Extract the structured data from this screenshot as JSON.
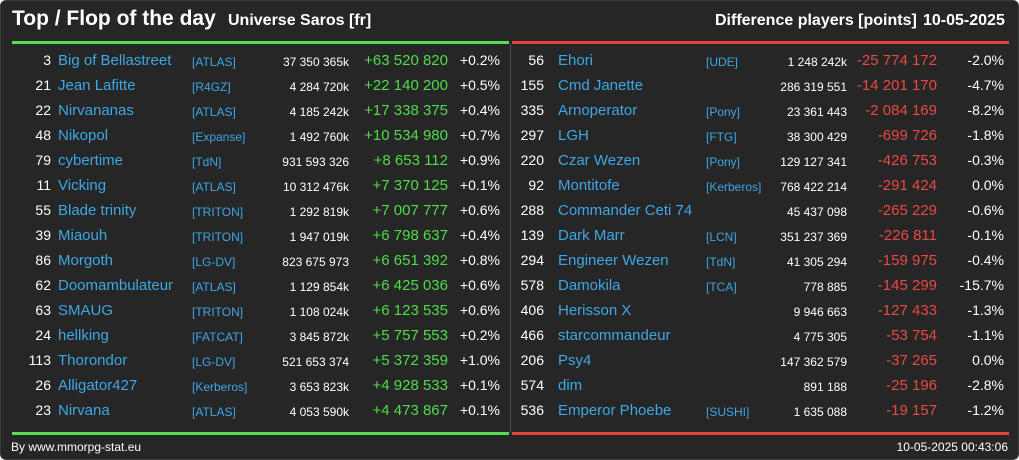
{
  "header": {
    "title": "Top / Flop of the day",
    "universe": "Universe Saros [fr]",
    "metric": "Difference players [points]",
    "date": "10-05-2025"
  },
  "colors": {
    "background": "#262626",
    "top_accent": "#5bdc4e",
    "flop_accent": "#e0463f",
    "link": "#3ea7e6"
  },
  "top": [
    {
      "rank": "3",
      "name": "Big of Bellastreet",
      "alliance": "[ATLAS]",
      "points": "37 350 365k",
      "diff": "+63 520 820",
      "pct": "+0.2%"
    },
    {
      "rank": "21",
      "name": "Jean Lafitte",
      "alliance": "[R4GZ]",
      "points": "4 284 720k",
      "diff": "+22 140 200",
      "pct": "+0.5%"
    },
    {
      "rank": "22",
      "name": "Nirvananas",
      "alliance": "[ATLAS]",
      "points": "4 185 242k",
      "diff": "+17 338 375",
      "pct": "+0.4%"
    },
    {
      "rank": "48",
      "name": "Nikopol",
      "alliance": "[Expanse]",
      "points": "1 492 760k",
      "diff": "+10 534 980",
      "pct": "+0.7%"
    },
    {
      "rank": "79",
      "name": "cybertime",
      "alliance": "[TdN]",
      "points": "931 593 326",
      "diff": "+8 653 112",
      "pct": "+0.9%"
    },
    {
      "rank": "11",
      "name": "Vicking",
      "alliance": "[ATLAS]",
      "points": "10 312 476k",
      "diff": "+7 370 125",
      "pct": "+0.1%"
    },
    {
      "rank": "55",
      "name": "Blade trinity",
      "alliance": "[TRITON]",
      "points": "1 292 819k",
      "diff": "+7 007 777",
      "pct": "+0.6%"
    },
    {
      "rank": "39",
      "name": "Miaouh",
      "alliance": "[TRITON]",
      "points": "1 947 019k",
      "diff": "+6 798 637",
      "pct": "+0.4%"
    },
    {
      "rank": "86",
      "name": "Morgoth",
      "alliance": "[LG-DV]",
      "points": "823 675 973",
      "diff": "+6 651 392",
      "pct": "+0.8%"
    },
    {
      "rank": "62",
      "name": "Doomambulateur",
      "alliance": "[ATLAS]",
      "points": "1 129 854k",
      "diff": "+6 425 036",
      "pct": "+0.6%"
    },
    {
      "rank": "63",
      "name": "SMAUG",
      "alliance": "[TRITON]",
      "points": "1 108 024k",
      "diff": "+6 123 535",
      "pct": "+0.6%"
    },
    {
      "rank": "24",
      "name": "hellking",
      "alliance": "[FATCAT]",
      "points": "3 845 872k",
      "diff": "+5 757 553",
      "pct": "+0.2%"
    },
    {
      "rank": "113",
      "name": "Thorondor",
      "alliance": "[LG-DV]",
      "points": "521 653 374",
      "diff": "+5 372 359",
      "pct": "+1.0%"
    },
    {
      "rank": "26",
      "name": "Alligator427",
      "alliance": "[Kerberos]",
      "points": "3 653 823k",
      "diff": "+4 928 533",
      "pct": "+0.1%"
    },
    {
      "rank": "23",
      "name": "Nirvana",
      "alliance": "[ATLAS]",
      "points": "4 053 590k",
      "diff": "+4 473 867",
      "pct": "+0.1%"
    }
  ],
  "flop": [
    {
      "rank": "56",
      "name": "Ehori",
      "alliance": "[UDE]",
      "points": "1 248 242k",
      "diff": "-25 774 172",
      "pct": "-2.0%"
    },
    {
      "rank": "155",
      "name": "Cmd Janette",
      "alliance": "",
      "points": "286 319 551",
      "diff": "-14 201 170",
      "pct": "-4.7%"
    },
    {
      "rank": "335",
      "name": "Arnoperator",
      "alliance": "[Pony]",
      "points": "23 361 443",
      "diff": "-2 084 169",
      "pct": "-8.2%"
    },
    {
      "rank": "297",
      "name": "LGH",
      "alliance": "[FTG]",
      "points": "38 300 429",
      "diff": "-699 726",
      "pct": "-1.8%"
    },
    {
      "rank": "220",
      "name": "Czar Wezen",
      "alliance": "[Pony]",
      "points": "129 127 341",
      "diff": "-426 753",
      "pct": "-0.3%"
    },
    {
      "rank": "92",
      "name": "Montitofe",
      "alliance": "[Kerberos]",
      "points": "768 422 214",
      "diff": "-291 424",
      "pct": "0.0%"
    },
    {
      "rank": "288",
      "name": "Commander Ceti 74",
      "alliance": "",
      "points": "45 437 098",
      "diff": "-265 229",
      "pct": "-0.6%"
    },
    {
      "rank": "139",
      "name": "Dark Marr",
      "alliance": "[LCN]",
      "points": "351 237 369",
      "diff": "-226 811",
      "pct": "-0.1%"
    },
    {
      "rank": "294",
      "name": "Engineer Wezen",
      "alliance": "[TdN]",
      "points": "41 305 294",
      "diff": "-159 975",
      "pct": "-0.4%"
    },
    {
      "rank": "578",
      "name": "Damokila",
      "alliance": "[TCA]",
      "points": "778 885",
      "diff": "-145 299",
      "pct": "-15.7%"
    },
    {
      "rank": "406",
      "name": "Herisson X",
      "alliance": "",
      "points": "9 946 663",
      "diff": "-127 433",
      "pct": "-1.3%"
    },
    {
      "rank": "466",
      "name": "starcommandeur",
      "alliance": "",
      "points": "4 775 305",
      "diff": "-53 754",
      "pct": "-1.1%"
    },
    {
      "rank": "206",
      "name": "Psy4",
      "alliance": "",
      "points": "147 362 579",
      "diff": "-37 265",
      "pct": "0.0%"
    },
    {
      "rank": "574",
      "name": "dim",
      "alliance": "",
      "points": "891 188",
      "diff": "-25 196",
      "pct": "-2.8%"
    },
    {
      "rank": "536",
      "name": "Emperor Phoebe",
      "alliance": "[SUSHI]",
      "points": "1 635 088",
      "diff": "-19 157",
      "pct": "-1.2%"
    }
  ],
  "footer": {
    "source": "By www.mmorpg-stat.eu",
    "timestamp": "10-05-2025 00:43:06"
  }
}
